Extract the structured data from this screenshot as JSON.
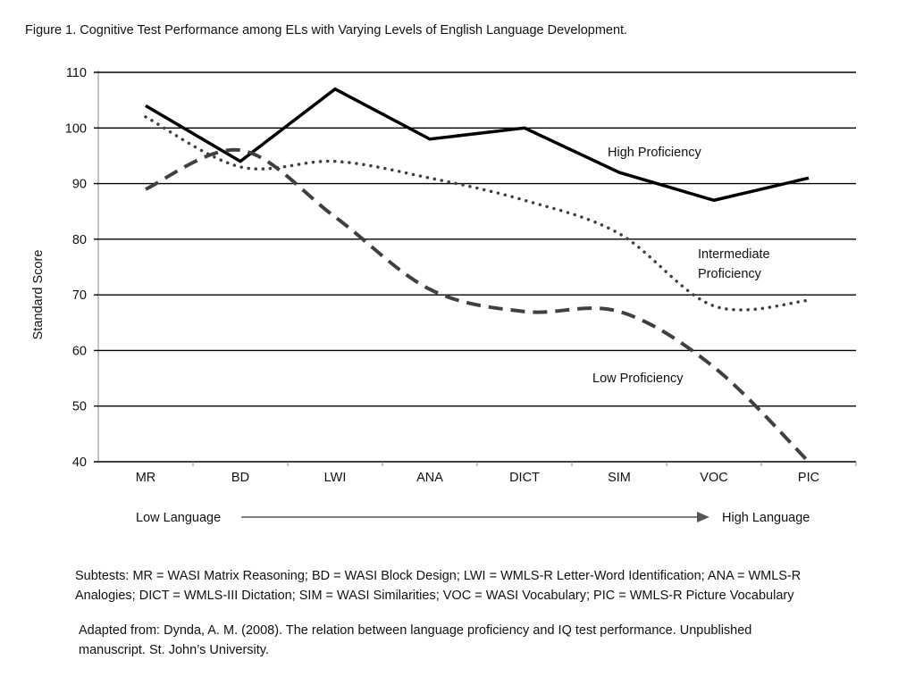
{
  "chart_data": {
    "type": "line",
    "title": "Figure 1. Cognitive Test Performance among ELs with Varying Levels of English Language Development.",
    "xlabel": "",
    "ylabel": "Standard Score",
    "ylim": [
      40,
      110
    ],
    "yticks": [
      40,
      50,
      60,
      70,
      80,
      90,
      100,
      110
    ],
    "grid": true,
    "categories": [
      "MR",
      "BD",
      "LWI",
      "ANA",
      "DICT",
      "SIM",
      "VOC",
      "PIC"
    ],
    "series": [
      {
        "name": "High Proficiency",
        "style": "solid",
        "color": "#000000",
        "values": [
          104,
          94,
          107,
          98,
          100,
          92,
          87,
          91
        ]
      },
      {
        "name": "Intermediate Proficiency",
        "label_lines": [
          "Intermediate",
          "Proficiency"
        ],
        "style": "dotted",
        "color": "#404040",
        "values": [
          102,
          93,
          94,
          91,
          87,
          81,
          68,
          69
        ]
      },
      {
        "name": "Low Proficiency",
        "style": "dashed",
        "color": "#404040",
        "values": [
          89,
          96,
          84,
          71,
          67,
          67,
          57,
          40
        ]
      }
    ],
    "language_axis": {
      "left": "Low Language",
      "right": "High Language"
    }
  },
  "notes": {
    "subtests_line1": "Subtests: MR = WASI Matrix Reasoning; BD = WASI Block Design; LWI = WMLS-R Letter-Word Identification; ANA = WMLS-R",
    "subtests_line2": "Analogies; DICT = WMLS-III Dictation; SIM = WASI Similarities; VOC = WASI Vocabulary; PIC = WMLS-R Picture Vocabulary",
    "source_line1": "Adapted from: Dynda, A. M. (2008). The relation between language proficiency and IQ test performance. Unpublished",
    "source_line2": "manuscript. St. John’s University."
  }
}
